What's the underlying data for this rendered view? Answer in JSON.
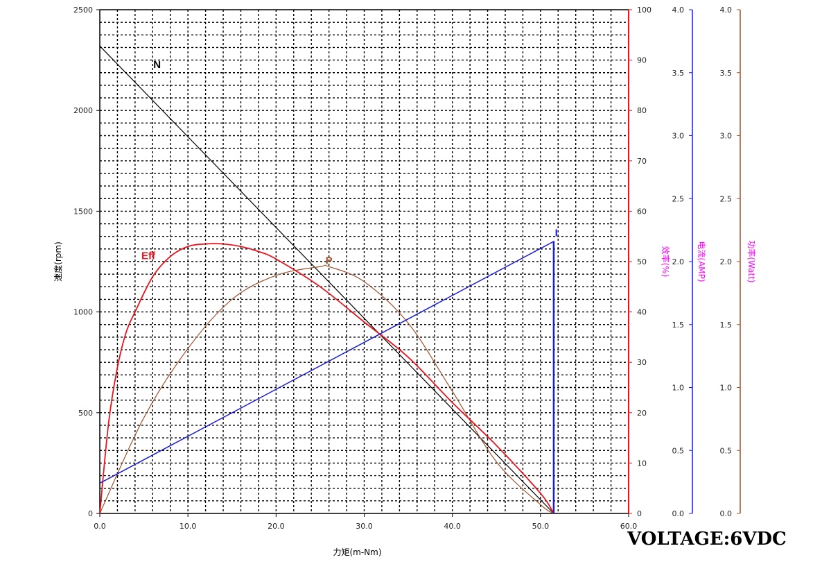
{
  "chart_data": {
    "type": "line",
    "xlabel": "力矩(m-Nm)",
    "xlim": [
      0,
      60
    ],
    "x_ticks": [
      "0.0",
      "10.0",
      "20.0",
      "30.0",
      "40.0",
      "50.0",
      "60.0"
    ],
    "axes": {
      "speed": {
        "label": "速度(rpm)",
        "range": [
          0,
          2500
        ],
        "ticks": [
          "0",
          "500",
          "1000",
          "1500",
          "2000",
          "2500"
        ],
        "color": "#000000"
      },
      "efficiency": {
        "label": "效率(%)",
        "range": [
          0,
          100
        ],
        "ticks": [
          "0",
          "10",
          "20",
          "30",
          "40",
          "50",
          "60",
          "70",
          "80",
          "90",
          "100"
        ],
        "color": "#e8141e",
        "label_color": "#ff00ff"
      },
      "current": {
        "label": "电流(AMP)",
        "range": [
          0,
          4
        ],
        "ticks": [
          "0.0",
          "0.5",
          "1.0",
          "1.5",
          "2.0",
          "2.5",
          "3.0",
          "3.5",
          "4.0"
        ],
        "color": "#1c1cd6",
        "label_color": "#ff00ff"
      },
      "power": {
        "label": "功率(Watt)",
        "range": [
          0,
          4
        ],
        "ticks": [
          "0.0",
          "0.5",
          "1.0",
          "1.5",
          "2.0",
          "2.5",
          "3.0",
          "3.5",
          "4.0"
        ],
        "color": "#a0522d",
        "label_color": "#ff00ff"
      }
    },
    "grid": true,
    "series": [
      {
        "name": "N",
        "axis": "speed",
        "color": "#000000",
        "x": [
          0,
          51.5
        ],
        "y": [
          2320,
          0
        ]
      },
      {
        "name": "P",
        "axis": "power",
        "color": "#a0522d",
        "x": [
          0,
          5,
          10,
          15,
          20,
          25,
          26,
          30,
          35,
          40,
          45,
          50,
          51.5
        ],
        "y": [
          0,
          0.76,
          1.31,
          1.7,
          1.89,
          1.96,
          1.96,
          1.84,
          1.51,
          0.97,
          0.41,
          0.07,
          0
        ]
      },
      {
        "name": "Eff",
        "axis": "efficiency",
        "color": "#e8141e",
        "x": [
          0,
          1,
          2,
          3,
          4,
          6,
          8,
          10,
          12,
          14,
          16,
          18,
          20,
          25,
          30,
          35,
          40,
          45,
          50,
          51.5
        ],
        "y": [
          0,
          18,
          29,
          36,
          40,
          47,
          51,
          53,
          53.5,
          53.5,
          53,
          52,
          50.5,
          45,
          38,
          31,
          22,
          13.5,
          4,
          0
        ]
      },
      {
        "name": "I",
        "axis": "current",
        "color": "#1c1cd6",
        "x": [
          0,
          51.5,
          51.5,
          51.5
        ],
        "y": [
          0.24,
          2.16,
          2.16,
          0
        ]
      }
    ]
  },
  "footer": {
    "voltage": "VOLTAGE:6VDC"
  }
}
